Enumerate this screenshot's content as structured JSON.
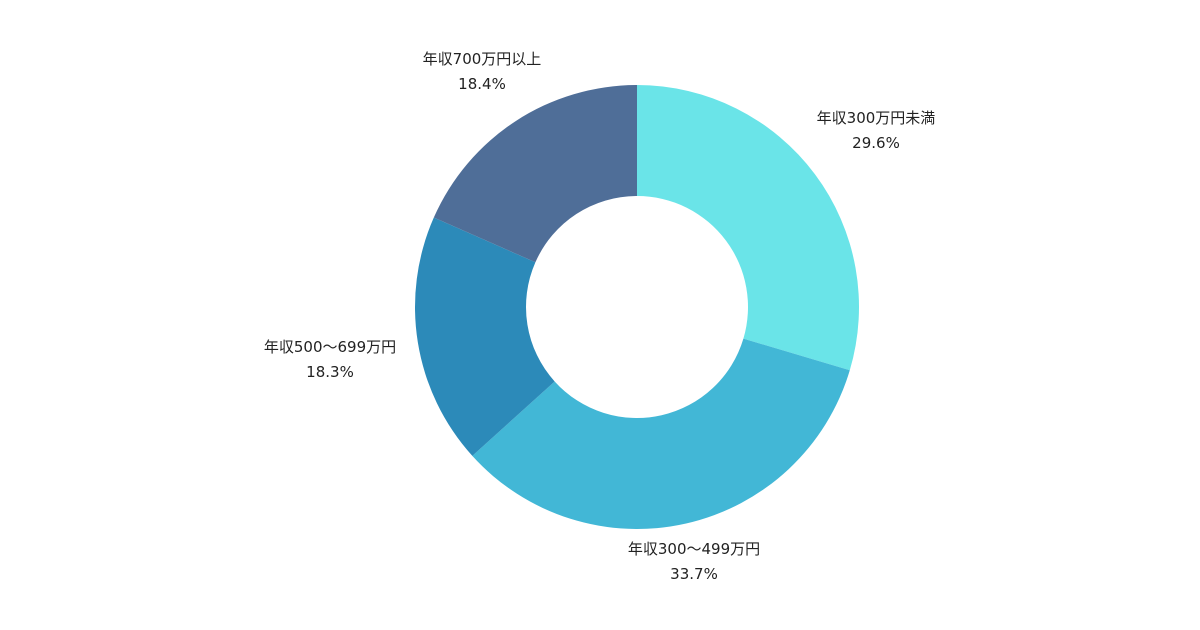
{
  "chart_data": {
    "type": "pie",
    "donut": true,
    "slices": [
      {
        "label": "年収300万円未満",
        "value": 29.6,
        "value_label": "29.6%",
        "color": "#6ae4e8"
      },
      {
        "label": "年収300〜499万円",
        "value": 33.7,
        "value_label": "33.7%",
        "color": "#42b7d6"
      },
      {
        "label": "年収500〜699万円",
        "value": 18.3,
        "value_label": "18.3%",
        "color": "#2c8ab9"
      },
      {
        "label": "年収700万円以上",
        "value": 18.4,
        "value_label": "18.4%",
        "color": "#4f6e98"
      }
    ],
    "legend": "none",
    "background": "#ffffff"
  }
}
